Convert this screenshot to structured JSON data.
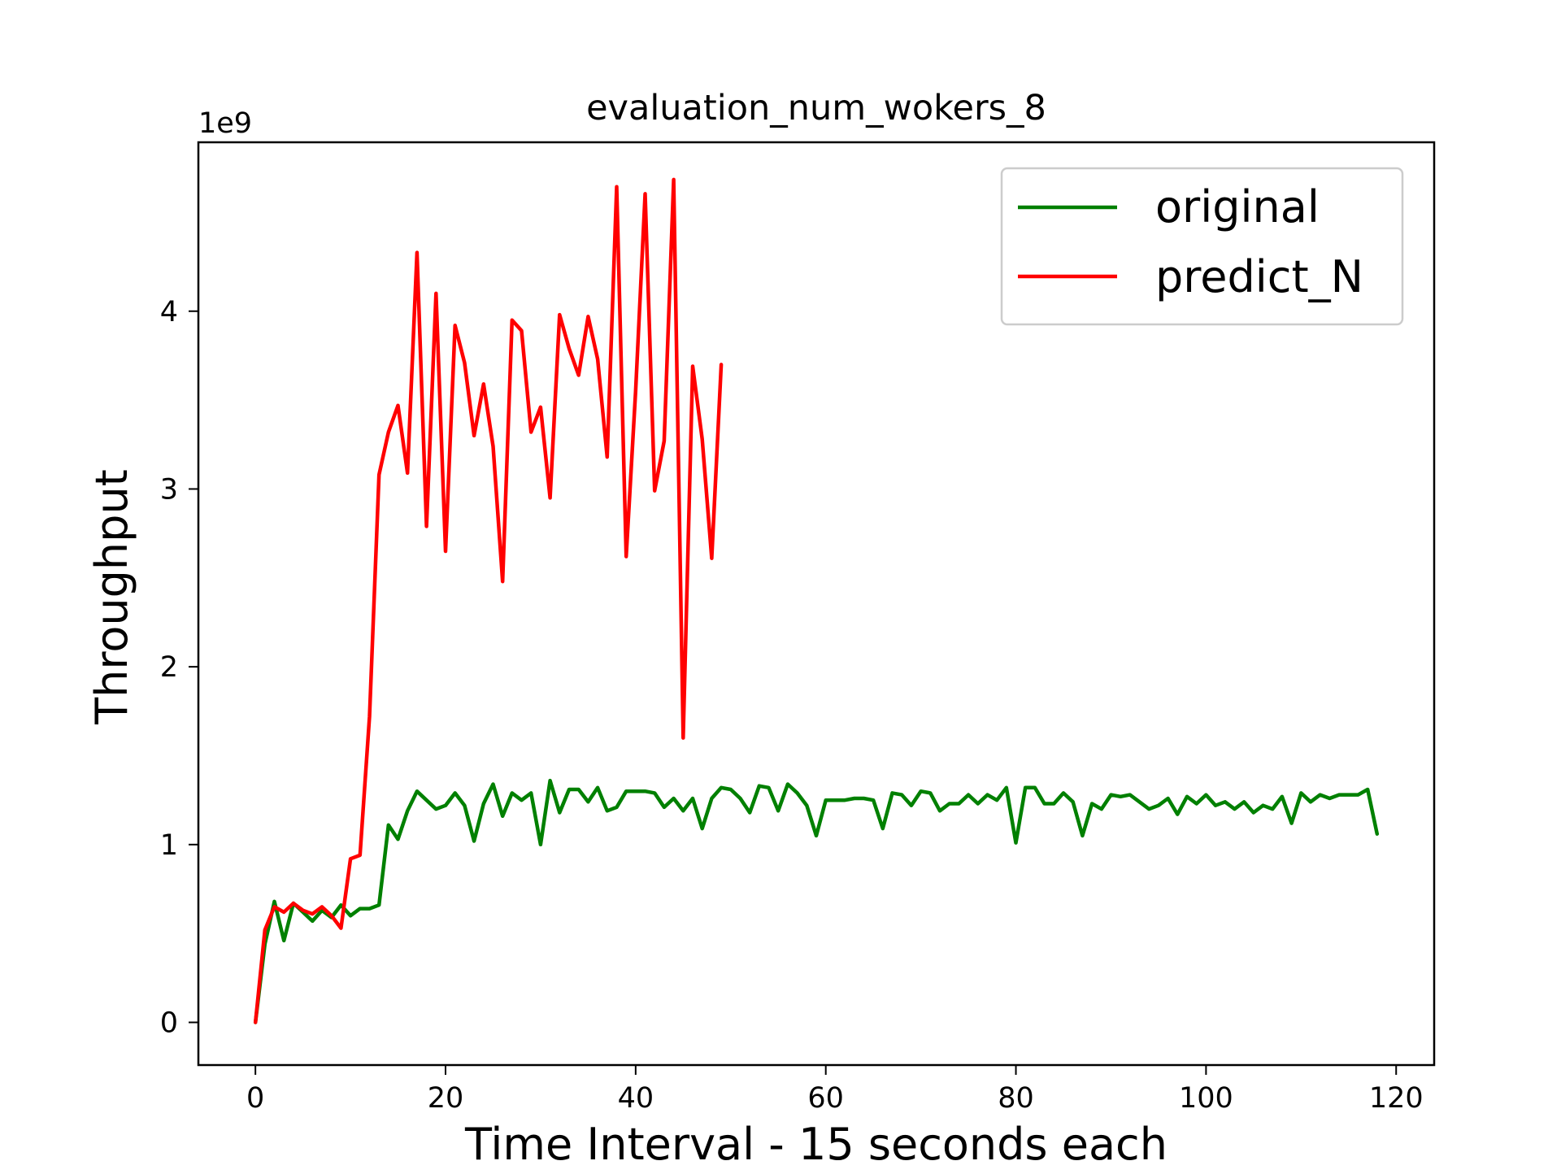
{
  "chart_data": {
    "type": "line",
    "title": "evaluation_num_wokers_8",
    "xlabel": "Time Interval - 15 seconds each",
    "ylabel": "Throughput",
    "y_scale_label": "1e9",
    "xlim": [
      -6,
      124
    ],
    "ylim": [
      -0.24,
      4.95
    ],
    "x_ticks": [
      0,
      20,
      40,
      60,
      80,
      100,
      120
    ],
    "y_ticks": [
      0,
      1,
      2,
      3,
      4
    ],
    "grid": false,
    "legend_position": "top-right",
    "series": [
      {
        "name": "original",
        "color": "#008000",
        "x": [
          0,
          1,
          2,
          3,
          4,
          5,
          6,
          7,
          8,
          9,
          10,
          11,
          12,
          13,
          14,
          15,
          16,
          17,
          18,
          19,
          20,
          21,
          22,
          23,
          24,
          25,
          26,
          27,
          28,
          29,
          30,
          31,
          32,
          33,
          34,
          35,
          36,
          37,
          38,
          39,
          40,
          41,
          42,
          43,
          44,
          45,
          46,
          47,
          48,
          49,
          50,
          51,
          52,
          53,
          54,
          55,
          56,
          57,
          58,
          59,
          60,
          61,
          62,
          63,
          64,
          65,
          66,
          67,
          68,
          69,
          70,
          71,
          72,
          73,
          74,
          75,
          76,
          77,
          78,
          79,
          80,
          81,
          82,
          83,
          84,
          85,
          86,
          87,
          88,
          89,
          90,
          91,
          92,
          93,
          94,
          95,
          96,
          97,
          98,
          99,
          100,
          101,
          102,
          103,
          104,
          105,
          106,
          107,
          108,
          109,
          110,
          111,
          112,
          113,
          114,
          115,
          116,
          117,
          118
        ],
        "values": [
          0.0,
          0.44,
          0.68,
          0.46,
          0.67,
          0.62,
          0.57,
          0.63,
          0.59,
          0.66,
          0.6,
          0.64,
          0.64,
          0.66,
          1.11,
          1.03,
          1.19,
          1.3,
          1.25,
          1.2,
          1.22,
          1.29,
          1.22,
          1.02,
          1.23,
          1.34,
          1.16,
          1.29,
          1.25,
          1.29,
          1.0,
          1.36,
          1.18,
          1.31,
          1.31,
          1.24,
          1.32,
          1.19,
          1.21,
          1.3,
          1.3,
          1.3,
          1.29,
          1.21,
          1.26,
          1.19,
          1.26,
          1.09,
          1.26,
          1.32,
          1.31,
          1.26,
          1.18,
          1.33,
          1.32,
          1.19,
          1.34,
          1.29,
          1.22,
          1.05,
          1.25,
          1.25,
          1.25,
          1.26,
          1.26,
          1.25,
          1.09,
          1.29,
          1.28,
          1.22,
          1.3,
          1.29,
          1.19,
          1.23,
          1.23,
          1.28,
          1.23,
          1.28,
          1.25,
          1.32,
          1.01,
          1.32,
          1.32,
          1.23,
          1.23,
          1.29,
          1.24,
          1.05,
          1.23,
          1.2,
          1.28,
          1.27,
          1.28,
          1.24,
          1.2,
          1.22,
          1.26,
          1.17,
          1.27,
          1.23,
          1.28,
          1.22,
          1.24,
          1.2,
          1.24,
          1.18,
          1.22,
          1.2,
          1.27,
          1.12,
          1.29,
          1.24,
          1.28,
          1.26,
          1.28,
          1.28,
          1.28,
          1.31,
          1.06
        ]
      },
      {
        "name": "predict_N",
        "color": "#ff0000",
        "x": [
          0,
          1,
          2,
          3,
          4,
          5,
          6,
          7,
          8,
          9,
          10,
          11,
          12,
          13,
          14,
          15,
          16,
          17,
          18,
          19,
          20,
          21,
          22,
          23,
          24,
          25,
          26,
          27,
          28,
          29,
          30,
          31,
          32,
          33,
          34,
          35,
          36,
          37,
          38,
          39,
          40,
          41,
          42,
          43,
          44,
          45,
          46,
          47,
          48,
          49
        ],
        "values": [
          0.0,
          0.52,
          0.65,
          0.62,
          0.67,
          0.63,
          0.61,
          0.65,
          0.6,
          0.53,
          0.92,
          0.94,
          1.72,
          3.08,
          3.32,
          3.47,
          3.09,
          4.33,
          2.79,
          4.1,
          2.65,
          3.92,
          3.71,
          3.3,
          3.59,
          3.24,
          2.48,
          3.95,
          3.89,
          3.32,
          3.46,
          2.95,
          3.98,
          3.79,
          3.64,
          3.97,
          3.73,
          3.18,
          4.7,
          2.62,
          3.55,
          4.66,
          2.99,
          3.27,
          4.74,
          1.6,
          3.69,
          3.28,
          2.61,
          3.7
        ]
      }
    ]
  }
}
